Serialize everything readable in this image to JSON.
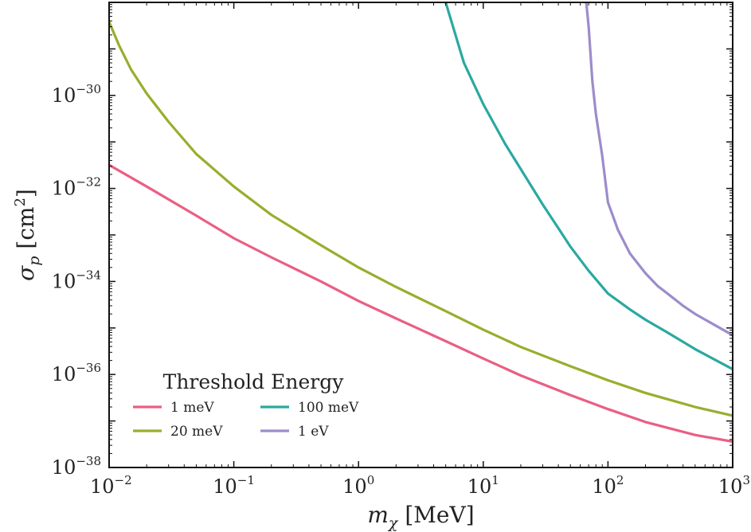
{
  "chart_data": {
    "type": "line",
    "title": "",
    "xlabel": {
      "symbol": "m",
      "sub": "χ",
      "unit": "[MeV]"
    },
    "ylabel": {
      "symbol": "σ",
      "sub": "p",
      "unit": "[cm",
      "unit_sup": "2",
      "unit_close": "]"
    },
    "x_scale": "log",
    "y_scale": "log",
    "xlim": [
      0.01,
      1000
    ],
    "ylim": [
      1e-38,
      1e-28
    ],
    "x_ticks": [
      {
        "value": 0.01,
        "base": "10",
        "exp": "−2"
      },
      {
        "value": 0.1,
        "base": "10",
        "exp": "−1"
      },
      {
        "value": 1,
        "base": "10",
        "exp": "0"
      },
      {
        "value": 10,
        "base": "10",
        "exp": "1"
      },
      {
        "value": 100,
        "base": "10",
        "exp": "2"
      },
      {
        "value": 1000,
        "base": "10",
        "exp": "3"
      }
    ],
    "y_ticks": [
      {
        "value": 1e-38,
        "base": "10",
        "exp": "−38"
      },
      {
        "value": 1e-36,
        "base": "10",
        "exp": "−36"
      },
      {
        "value": 1e-34,
        "base": "10",
        "exp": "−34"
      },
      {
        "value": 1e-32,
        "base": "10",
        "exp": "−32"
      },
      {
        "value": 1e-30,
        "base": "10",
        "exp": "−30"
      }
    ],
    "grid": false,
    "legend": {
      "title": "Threshold Energy",
      "placement": "lower-left",
      "columns": 2
    },
    "series": [
      {
        "name": "1 meV",
        "color": "#ea5f83",
        "x": [
          0.01,
          0.02,
          0.05,
          0.1,
          0.2,
          0.5,
          1,
          2,
          5,
          10,
          20,
          50,
          100,
          200,
          500,
          1000
        ],
        "y": [
          3.2e-32,
          1.1e-32,
          2.6e-33,
          8.5e-34,
          3.3e-34,
          1e-34,
          3.8e-35,
          1.6e-35,
          5.2e-36,
          2.2e-36,
          9.5e-37,
          3.6e-37,
          1.8e-37,
          9.5e-38,
          5e-38,
          3.6e-38
        ]
      },
      {
        "name": "20 meV",
        "color": "#9aad2e",
        "x": [
          0.01,
          0.012,
          0.015,
          0.02,
          0.03,
          0.05,
          0.1,
          0.2,
          0.5,
          1,
          2,
          5,
          10,
          20,
          50,
          100,
          200,
          500,
          1000
        ],
        "y": [
          3.8e-29,
          1.2e-29,
          3.6e-30,
          1.1e-30,
          2.7e-31,
          5.5e-32,
          1.1e-32,
          2.7e-33,
          6e-34,
          2e-34,
          7.6e-35,
          2.3e-35,
          9.2e-36,
          3.9e-36,
          1.5e-36,
          7.5e-37,
          4e-37,
          2e-37,
          1.3e-37
        ]
      },
      {
        "name": "100 meV",
        "color": "#2aa9a1",
        "x": [
          5,
          7,
          10,
          15,
          20,
          30,
          40,
          50,
          70,
          100,
          150,
          200,
          300,
          500,
          1000
        ],
        "y": [
          1e-28,
          5e-30,
          6.5e-31,
          9e-32,
          2.6e-32,
          4.5e-33,
          1.4e-33,
          5.6e-34,
          1.7e-34,
          5.5e-35,
          2.5e-35,
          1.5e-35,
          8e-36,
          3.5e-36,
          1.3e-36
        ]
      },
      {
        "name": "1 eV",
        "color": "#9d8ccb",
        "x": [
          67,
          70,
          75,
          80,
          90,
          100,
          120,
          150,
          200,
          250,
          300,
          400,
          500,
          700,
          1000
        ],
        "y": [
          1e-28,
          3e-29,
          2e-30,
          4e-31,
          5e-32,
          5e-33,
          1.3e-33,
          4e-34,
          1.5e-34,
          8e-35,
          5.5e-35,
          3e-35,
          2e-35,
          1.2e-35,
          7e-36
        ]
      }
    ]
  }
}
